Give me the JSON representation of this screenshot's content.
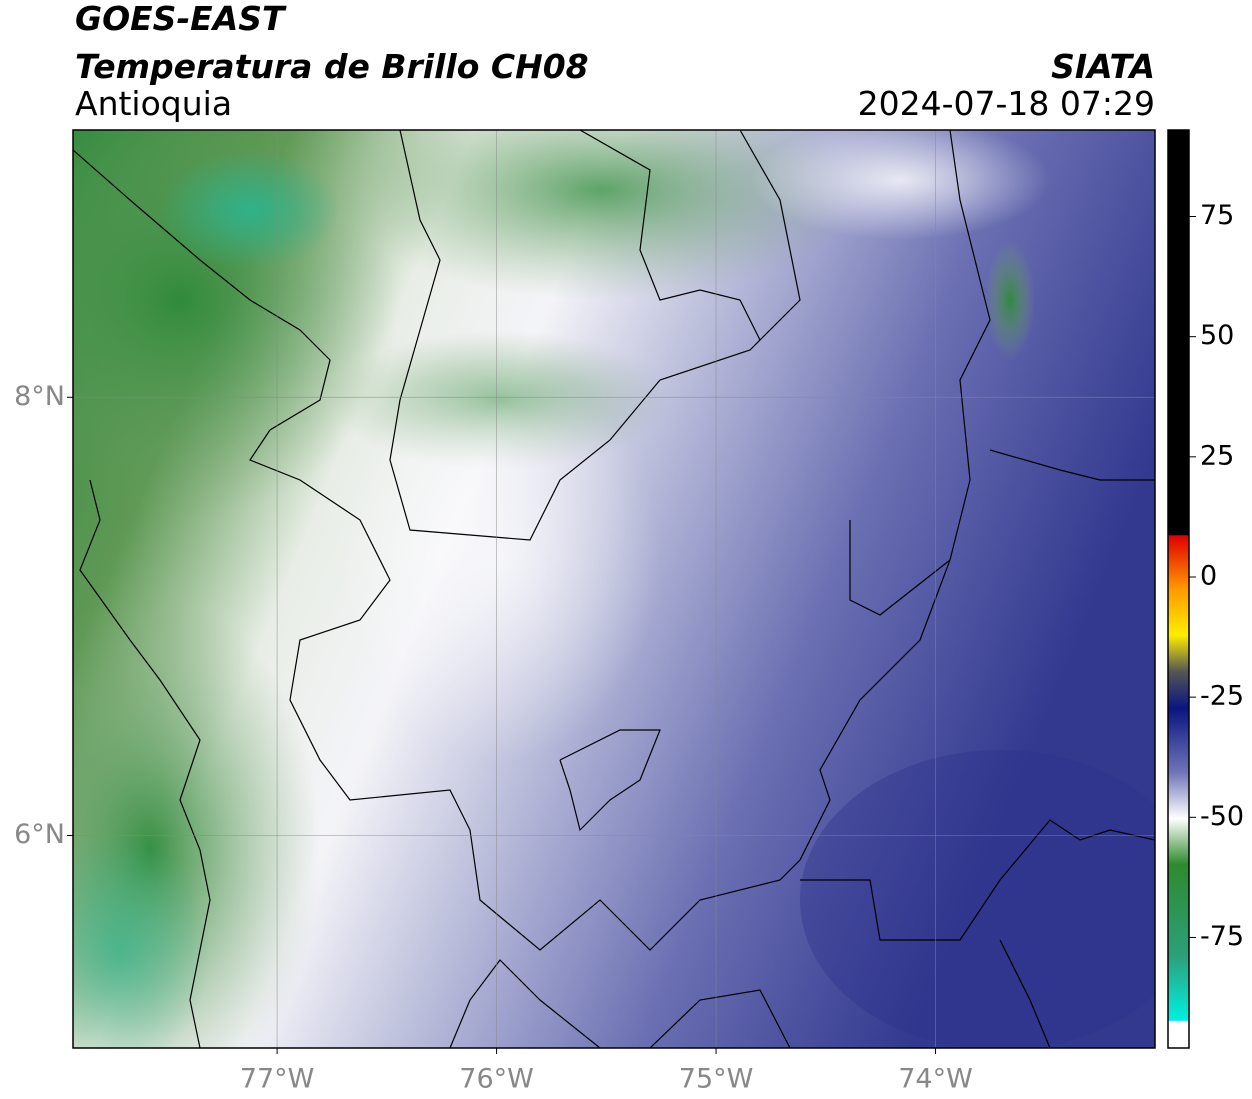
{
  "header": {
    "title": "GOES-EAST",
    "subtitle": "Temperatura de Brillo CH08",
    "region": "Antioquia",
    "source": "SIATA",
    "timestamp": "2024-07-18 07:29"
  },
  "map": {
    "xlim": [
      -77.93,
      -73.0
    ],
    "ylim": [
      5.03,
      9.22
    ],
    "xticks": [
      {
        "value": -77,
        "label": "77°W"
      },
      {
        "value": -76,
        "label": "76°W"
      },
      {
        "value": -75,
        "label": "75°W"
      },
      {
        "value": -74,
        "label": "74°W"
      }
    ],
    "yticks": [
      {
        "value": 8,
        "label": "8°N"
      },
      {
        "value": 6,
        "label": "6°N"
      }
    ],
    "grid": true
  },
  "colorbar": {
    "ylim": [
      -98,
      93
    ],
    "yticks": [
      75,
      50,
      25,
      0,
      -25,
      -50,
      -75
    ]
  }
}
